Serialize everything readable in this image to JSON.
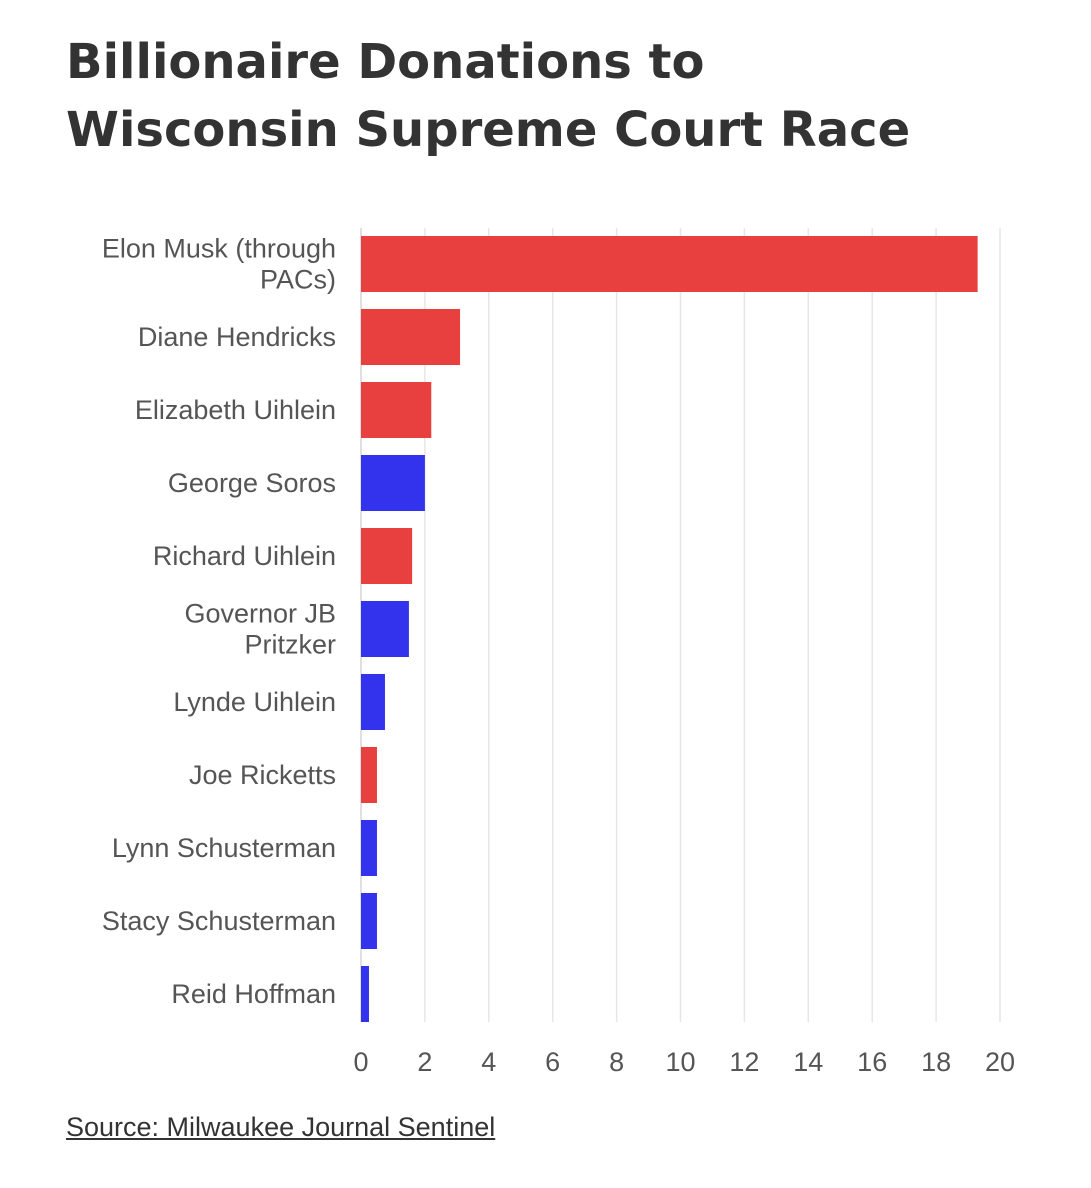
{
  "title_lines": [
    "Billionaire Donations to",
    "Wisconsin Supreme Court Race"
  ],
  "source": "Source: Milwaukee Journal Sentinel",
  "colors": {
    "red": "#e8403e",
    "blue": "#3333ee",
    "grid": "#e6e6e6",
    "text": "#555555"
  },
  "chart_data": {
    "type": "bar",
    "orientation": "horizontal",
    "title": "Billionaire Donations to Wisconsin Supreme Court Race",
    "xlabel": "",
    "ylabel": "",
    "xlim": [
      0,
      20
    ],
    "xticks": [
      0,
      2,
      4,
      6,
      8,
      10,
      12,
      14,
      16,
      18,
      20
    ],
    "grid": true,
    "legend": "none",
    "categories": [
      [
        "Elon Musk (through",
        "PACs)"
      ],
      [
        "Diane Hendricks"
      ],
      [
        "Elizabeth Uihlein"
      ],
      [
        "George Soros"
      ],
      [
        "Richard Uihlein"
      ],
      [
        "Governor JB",
        "Pritzker"
      ],
      [
        "Lynde Uihlein"
      ],
      [
        "Joe Ricketts"
      ],
      [
        "Lynn Schusterman"
      ],
      [
        "Stacy Schusterman"
      ],
      [
        "Reid Hoffman"
      ]
    ],
    "values": [
      19.3,
      3.1,
      2.2,
      2.0,
      1.6,
      1.5,
      0.75,
      0.5,
      0.5,
      0.5,
      0.25
    ],
    "bar_colors": [
      "red",
      "red",
      "red",
      "blue",
      "red",
      "blue",
      "blue",
      "red",
      "blue",
      "blue",
      "blue"
    ]
  }
}
